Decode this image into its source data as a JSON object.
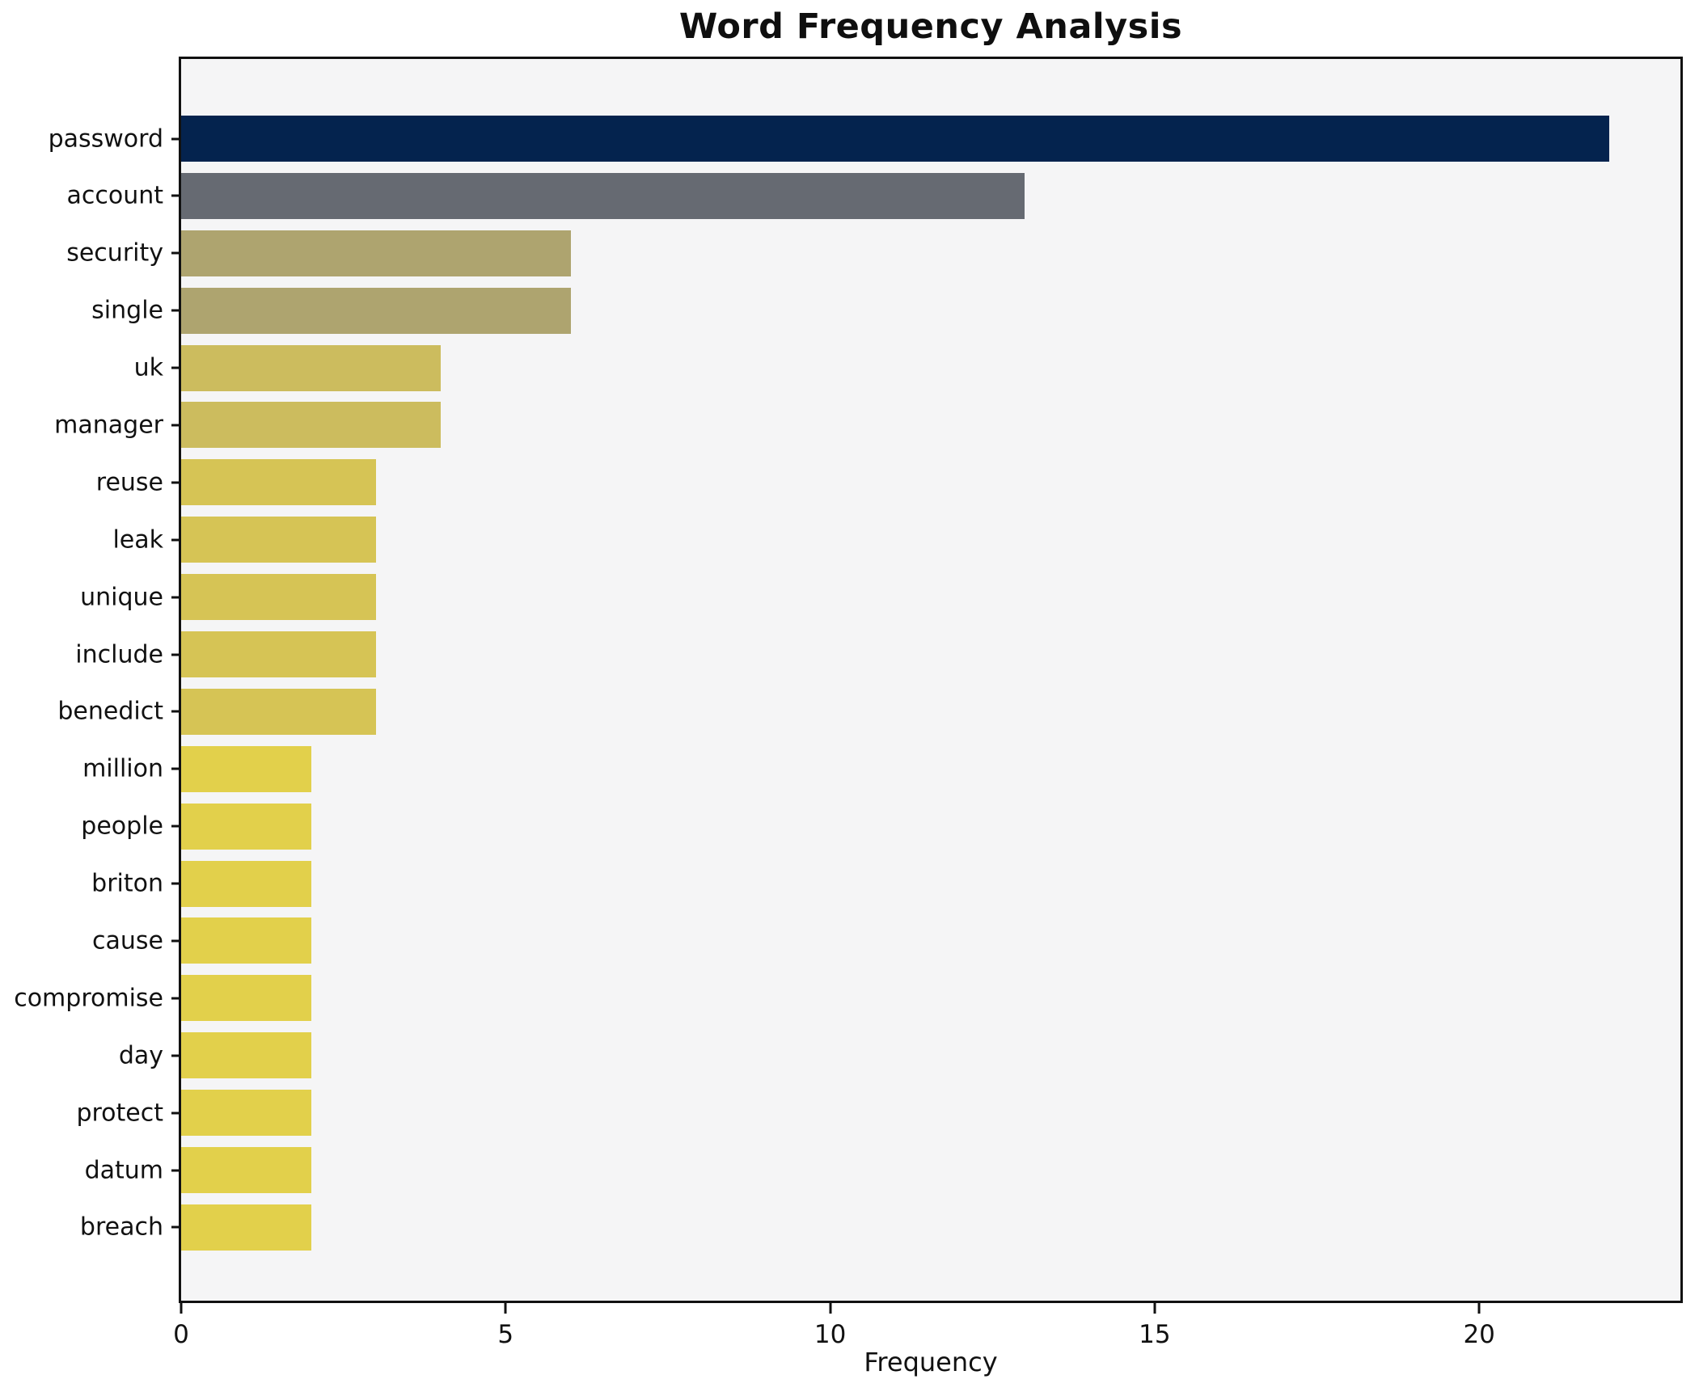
{
  "chart_data": {
    "type": "bar",
    "orientation": "horizontal",
    "title": "Word Frequency Analysis",
    "xlabel": "Frequency",
    "ylabel": "",
    "categories": [
      "password",
      "account",
      "security",
      "single",
      "uk",
      "manager",
      "reuse",
      "leak",
      "unique",
      "include",
      "benedict",
      "million",
      "people",
      "briton",
      "cause",
      "compromise",
      "day",
      "protect",
      "datum",
      "breach"
    ],
    "values": [
      22,
      13,
      6,
      6,
      4,
      4,
      3,
      3,
      3,
      3,
      3,
      2,
      2,
      2,
      2,
      2,
      2,
      2,
      2,
      2
    ],
    "bar_colors": [
      "#04234e",
      "#666a72",
      "#aea46f",
      "#aea46f",
      "#ccbc5e",
      "#ccbc5e",
      "#d6c455",
      "#d6c455",
      "#d6c455",
      "#d6c455",
      "#d6c455",
      "#e2d04b",
      "#e2d04b",
      "#e2d04b",
      "#e2d04b",
      "#e2d04b",
      "#e2d04b",
      "#e2d04b",
      "#e2d04b",
      "#e2d04b"
    ],
    "xlim": [
      0,
      23.1
    ],
    "xticks": [
      0,
      5,
      10,
      15,
      20
    ],
    "grid": false,
    "legend": null,
    "plot_background": "#f5f5f6",
    "figure_background": "#ffffff",
    "frame_color": "#111111"
  }
}
